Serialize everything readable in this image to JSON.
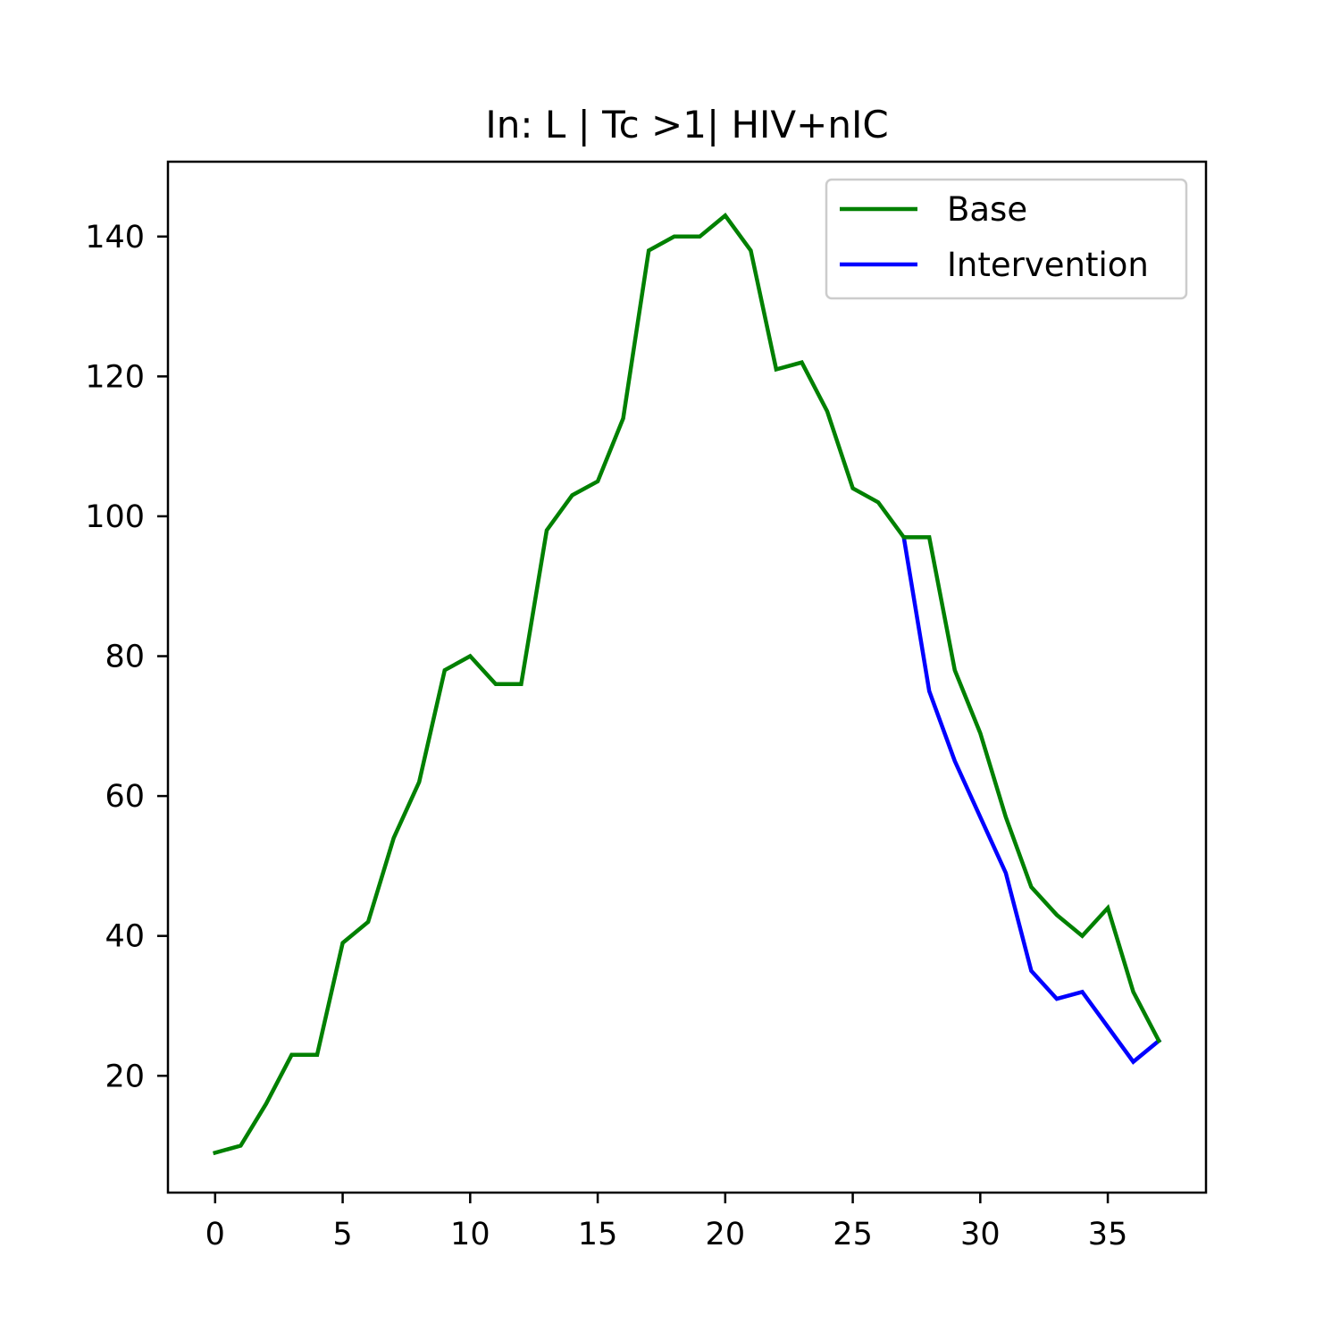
{
  "chart_data": {
    "type": "line",
    "title": "In: L | Tc >1| HIV+nIC",
    "xlabel": "",
    "ylabel": "",
    "xlim": [
      -1.85,
      38.85
    ],
    "ylim": [
      3.3,
      150.7
    ],
    "xticks": [
      0,
      5,
      10,
      15,
      20,
      25,
      30,
      35
    ],
    "yticks": [
      20,
      40,
      60,
      80,
      100,
      120,
      140
    ],
    "grid": false,
    "legend_position": "top-right",
    "series": [
      {
        "name": "Base",
        "color": "#008000",
        "x": [
          0,
          1,
          2,
          3,
          4,
          5,
          6,
          7,
          8,
          9,
          10,
          11,
          12,
          13,
          14,
          15,
          16,
          17,
          18,
          19,
          20,
          21,
          22,
          23,
          24,
          25,
          26,
          27,
          28,
          29,
          30,
          31,
          32,
          33,
          34,
          35,
          36,
          37
        ],
        "y": [
          9,
          10,
          16,
          23,
          23,
          39,
          42,
          54,
          62,
          78,
          80,
          76,
          76,
          98,
          103,
          105,
          114,
          138,
          140,
          140,
          143,
          138,
          121,
          122,
          115,
          104,
          102,
          97,
          97,
          78,
          69,
          57,
          47,
          43,
          40,
          44,
          32,
          25
        ]
      },
      {
        "name": "Intervention",
        "color": "#0000ff",
        "x": [
          27,
          28,
          29,
          30,
          31,
          32,
          33,
          34,
          35,
          36,
          37
        ],
        "y": [
          97,
          75,
          65,
          57,
          49,
          35,
          31,
          32,
          27,
          22,
          25
        ]
      }
    ]
  }
}
